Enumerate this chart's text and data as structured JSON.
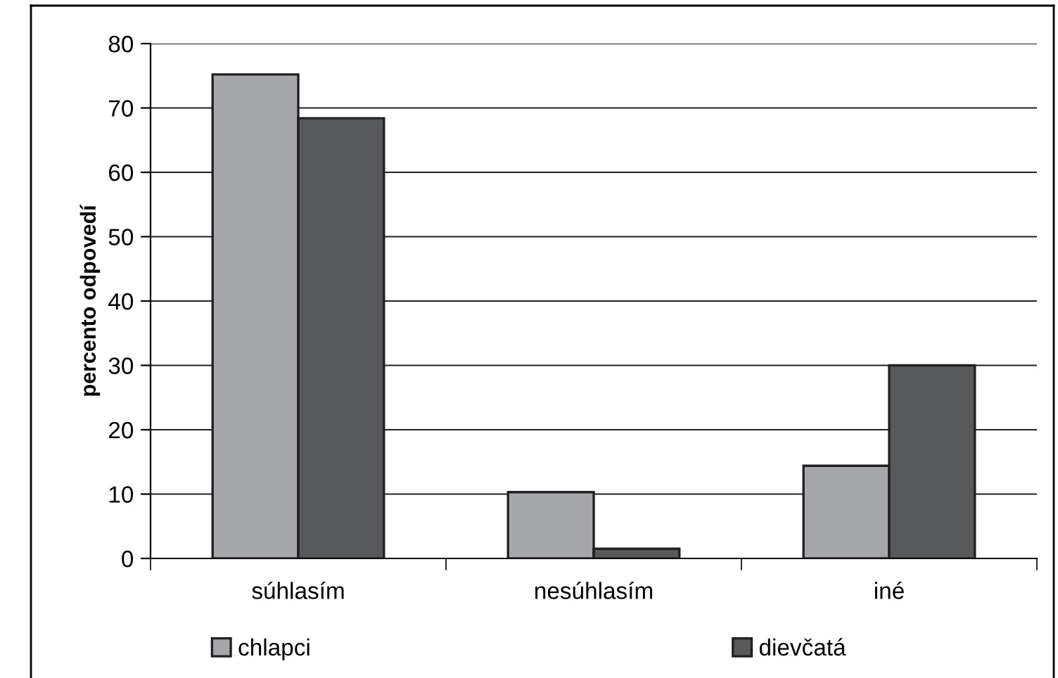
{
  "chart_data": {
    "type": "bar",
    "ylabel": "percento odpovedí",
    "categories": [
      "súhlasím",
      "nesúhlasím",
      "iné"
    ],
    "series": [
      {
        "name": "chlapci",
        "color": "#a6a7aa",
        "values": [
          75.2,
          10.3,
          14.4
        ]
      },
      {
        "name": "dievčatá",
        "color": "#58595b",
        "values": [
          68.4,
          1.5,
          30.0
        ]
      }
    ],
    "ylim": [
      0,
      80
    ],
    "yticks": [
      0,
      10,
      20,
      30,
      40,
      50,
      60,
      70,
      80
    ],
    "grid": "y",
    "legend": "bottom"
  }
}
